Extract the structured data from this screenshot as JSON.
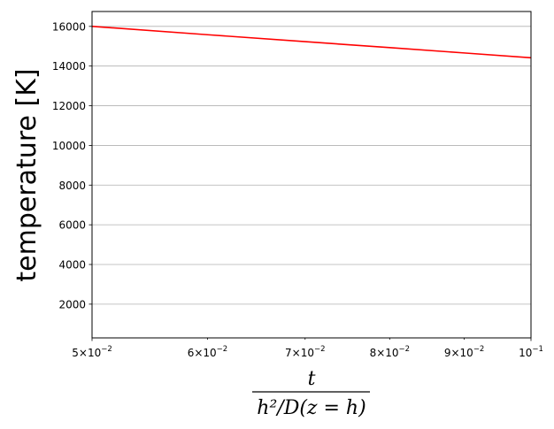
{
  "chart_data": {
    "type": "line",
    "title": "",
    "ylabel": "temperature [K]",
    "xlabel": {
      "numerator": "t",
      "denominator": "h²/D(z = h)"
    },
    "xscale": "log",
    "xlim": [
      0.05,
      0.1
    ],
    "ylim": [
      300,
      16750
    ],
    "grid": {
      "x": false,
      "y": true
    },
    "x_major_ticks": [
      {
        "value": 0.05,
        "mantissa": "5",
        "exp": "−2"
      },
      {
        "value": 0.1,
        "mantissa": "",
        "exp": "−1"
      }
    ],
    "x_minor_ticks": [
      {
        "value": 0.06,
        "mantissa": "6",
        "exp": "−2"
      },
      {
        "value": 0.07,
        "mantissa": "7",
        "exp": "−2"
      },
      {
        "value": 0.08,
        "mantissa": "8",
        "exp": "−2"
      },
      {
        "value": 0.09,
        "mantissa": "9",
        "exp": "−2"
      }
    ],
    "y_ticks": [
      2000,
      4000,
      6000,
      8000,
      10000,
      12000,
      14000,
      16000
    ],
    "series": [
      {
        "color": "#ff0000",
        "x": [
          0.05,
          0.06,
          0.07,
          0.08,
          0.09,
          0.1
        ],
        "y": [
          16000,
          15580,
          15230,
          14930,
          14660,
          14420
        ]
      }
    ]
  }
}
